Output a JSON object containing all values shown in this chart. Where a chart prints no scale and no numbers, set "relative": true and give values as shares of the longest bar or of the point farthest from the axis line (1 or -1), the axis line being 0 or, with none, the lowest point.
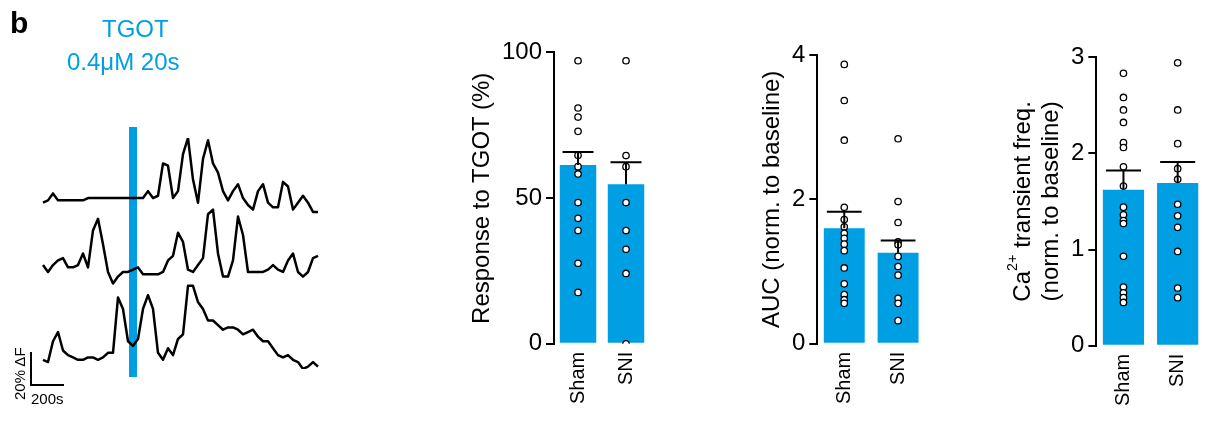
{
  "chart_data": [
    {
      "type": "line",
      "relative": true,
      "categories": [
        null,
        null,
        null,
        null,
        null,
        null,
        null,
        null,
        null,
        null,
        null,
        null,
        null,
        null,
        null,
        null,
        null,
        null,
        null,
        null,
        null,
        null,
        null,
        null,
        null,
        null,
        null,
        null,
        null,
        null,
        null,
        null,
        null,
        null,
        null,
        null,
        null,
        null,
        null,
        null,
        null,
        null,
        null,
        null,
        null,
        null,
        null,
        null,
        null,
        null,
        null,
        null,
        null,
        null,
        null,
        null
      ],
      "series": [
        {
          "color": "#000000",
          "values": [
            0.72,
            0.73,
            0.76,
            0.73,
            0.73,
            0.73,
            0.73,
            0.73,
            0.73,
            0.74,
            0.74,
            0.74,
            0.74,
            0.74,
            0.74,
            0.74,
            0.74,
            0.74,
            0.74,
            0.74,
            0.74,
            0.77,
            0.74,
            0.75,
            0.89,
            0.88,
            0.74,
            0.77,
            0.93,
            1,
            0.82,
            0.72,
            0.91,
            0.99,
            0.89,
            0.85,
            0.77,
            0.73,
            0.77,
            0.8,
            0.74,
            0.71,
            0.69,
            0.77,
            0.8,
            0.72,
            0.7,
            0.7,
            0.81,
            0.79,
            0.69,
            0.72,
            0.75,
            0.72,
            0.68,
            0.68
          ]
        },
        {
          "color": "#000000",
          "values": [
            0.45,
            0.42,
            0.45,
            0.47,
            0.48,
            0.44,
            0.44,
            0.45,
            0.5,
            0.44,
            0.6,
            0.65,
            0.54,
            0.42,
            0.37,
            0.4,
            0.42,
            0.42,
            0.43,
            0.44,
            0.41,
            0.41,
            0.41,
            0.41,
            0.42,
            0.47,
            0.49,
            0.59,
            0.55,
            0.43,
            0.42,
            0.45,
            0.48,
            0.67,
            0.69,
            0.5,
            0.4,
            0.4,
            0.47,
            0.66,
            0.58,
            0.42,
            0.42,
            0.42,
            0.42,
            0.43,
            0.45,
            0.43,
            0.42,
            0.47,
            0.5,
            0.42,
            0.4,
            0.42,
            0.48,
            0.49
          ]
        },
        {
          "color": "#000000",
          "values": [
            0.04,
            0.03,
            0.12,
            0.16,
            0.08,
            0.06,
            0.05,
            0.04,
            0.04,
            0.05,
            0.05,
            0.04,
            0.05,
            0.07,
            0.07,
            0.31,
            0.26,
            0.12,
            0.1,
            0.13,
            0.26,
            0.32,
            0.26,
            0.07,
            0.04,
            0.09,
            0.06,
            0.13,
            0.15,
            0.36,
            0.36,
            0.29,
            0.26,
            0.21,
            0.21,
            0.19,
            0.17,
            0.18,
            0.18,
            0.17,
            0.15,
            0.16,
            0.17,
            0.14,
            0.12,
            0.12,
            0.09,
            0.06,
            0.05,
            0.06,
            0.04,
            0.03,
            0,
            0.01,
            0.03,
            0.01
          ]
        }
      ],
      "annotations": [
        "b",
        "20% ΔF",
        "200s",
        "TGOT",
        "0.4μM 20s"
      ]
    },
    {
      "type": "bar",
      "ylabel": "Response to TGOT (%)",
      "categories": [
        "Sham",
        "SNI"
      ],
      "ylim": [
        0,
        100
      ],
      "yticks": [
        0,
        50,
        100
      ],
      "series": [
        {
          "type": "bar",
          "color": "#009fe3",
          "values": [
            61.3,
            54.7
          ],
          "errors": [
            [
              61.3,
              65.7
            ],
            [
              54.7,
              62.2
            ]
          ]
        },
        {
          "type": "scatter",
          "color": "#ffffff",
          "x": [
            "Sham",
            "Sham",
            "Sham",
            "Sham",
            "Sham",
            "Sham",
            "Sham",
            "Sham",
            "Sham",
            "Sham",
            "Sham",
            "Sham",
            "SNI",
            "SNI",
            "SNI",
            "SNI",
            "SNI",
            "SNI",
            "SNI",
            "SNI"
          ],
          "values": [
            97,
            80.8,
            77.7,
            72.8,
            64.6,
            60.7,
            58.2,
            48.4,
            43,
            38.8,
            27.6,
            17.6,
            97,
            64.5,
            60.7,
            48.4,
            38.8,
            32.4,
            24.1,
            0
          ]
        }
      ]
    },
    {
      "type": "bar",
      "ylabel": "AUC (norm. to baseline)",
      "categories": [
        "Sham",
        "SNI"
      ],
      "ylim": [
        0,
        4
      ],
      "yticks": [
        0,
        2,
        4
      ],
      "series": [
        {
          "type": "bar",
          "color": "#009fe3",
          "values": [
            1.6,
            1.26
          ],
          "errors": [
            [
              1.6,
              1.83
            ],
            [
              1.26,
              1.43
            ]
          ]
        },
        {
          "type": "scatter",
          "color": "#ffffff",
          "x": [
            "Sham",
            "Sham",
            "Sham",
            "Sham",
            "Sham",
            "Sham",
            "Sham",
            "Sham",
            "Sham",
            "Sham",
            "Sham",
            "Sham",
            "Sham",
            "Sham",
            "Sham",
            "SNI",
            "SNI",
            "SNI",
            "SNI",
            "SNI",
            "SNI",
            "SNI",
            "SNI",
            "SNI",
            "SNI",
            "SNI"
          ],
          "values": [
            3.87,
            3.37,
            2.82,
            1.89,
            1.72,
            1.62,
            1.53,
            1.46,
            1.38,
            1.29,
            1.05,
            0.83,
            0.68,
            0.61,
            0.56,
            2.84,
            1.97,
            1.68,
            1.41,
            1.37,
            1.21,
            1.07,
            0.95,
            0.63,
            0.56,
            0.32
          ]
        }
      ]
    },
    {
      "type": "bar",
      "ylabel": "Ca$^{2+}$ transient freq.\n(norm. to baseline)",
      "categories": [
        "Sham",
        "SNI"
      ],
      "ylim": [
        0,
        3
      ],
      "yticks": [
        0,
        1,
        2,
        3
      ],
      "series": [
        {
          "type": "bar",
          "color": "#009fe3",
          "values": [
            1.62,
            1.69
          ],
          "errors": [
            [
              1.62,
              1.82
            ],
            [
              1.69,
              1.91
            ]
          ]
        },
        {
          "type": "scatter",
          "color": "#ffffff",
          "x": [
            "Sham",
            "Sham",
            "Sham",
            "Sham",
            "Sham",
            "Sham",
            "Sham",
            "Sham",
            "Sham",
            "Sham",
            "Sham",
            "Sham",
            "Sham",
            "Sham",
            "Sham",
            "Sham",
            "Sham",
            "SNI",
            "SNI",
            "SNI",
            "SNI",
            "SNI",
            "SNI",
            "SNI",
            "SNI",
            "SNI",
            "SNI",
            "SNI"
          ],
          "values": [
            2.83,
            2.58,
            2.45,
            2.32,
            2.11,
            2.06,
            1.86,
            1.66,
            1.44,
            1.36,
            1.3,
            1.27,
            0.93,
            0.61,
            0.55,
            0.5,
            0.45,
            2.94,
            2.45,
            2.1,
            1.84,
            1.73,
            1.47,
            1.35,
            1.23,
            0.98,
            0.6,
            0.5
          ]
        }
      ]
    }
  ]
}
